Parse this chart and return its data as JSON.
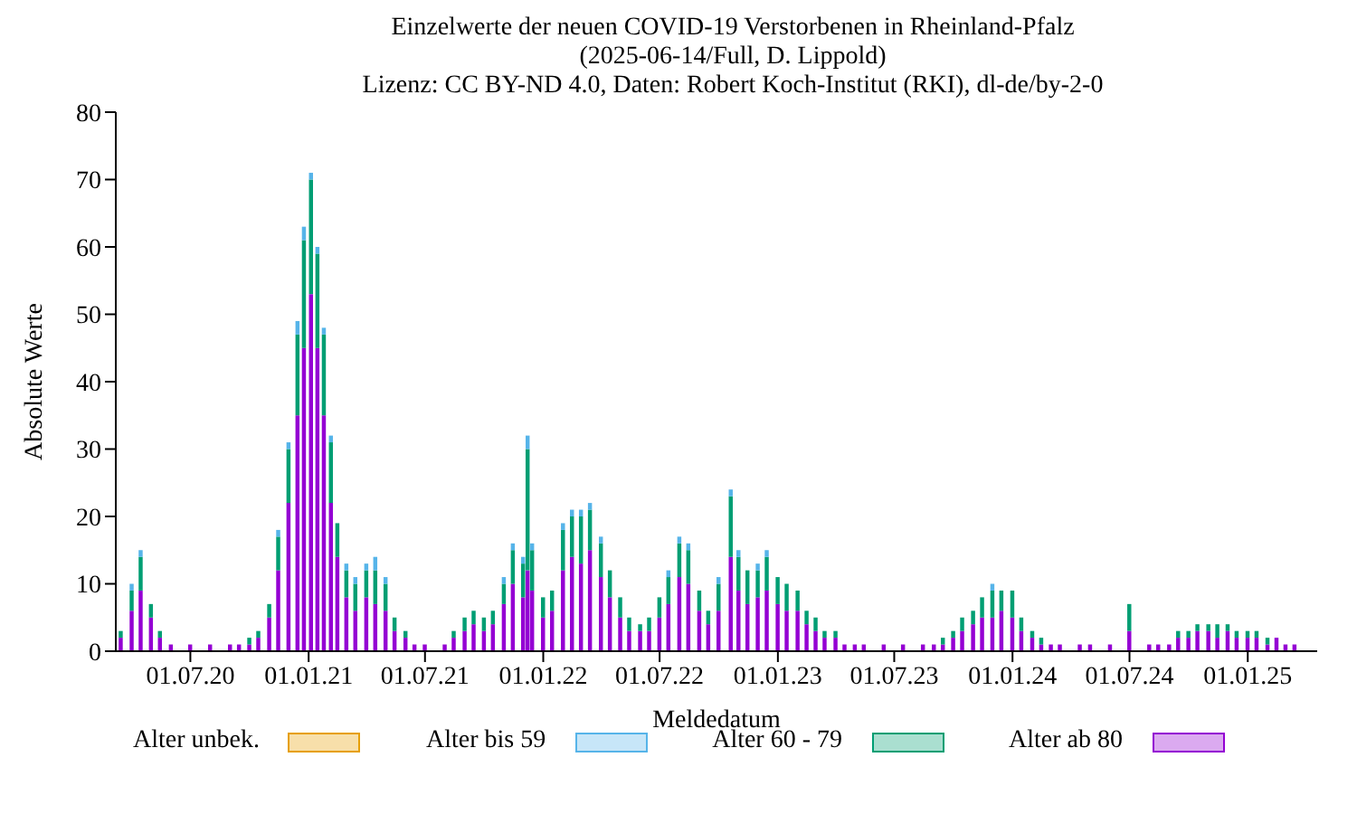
{
  "chart_data": {
    "type": "bar",
    "stacked": true,
    "title": "Einzelwerte der neuen COVID-19 Verstorbenen in Rheinland-Pfalz",
    "subtitle": "(2025-06-14/Full, D. Lippold)",
    "annotations": [
      "Lizenz: CC BY-ND 4.0, Daten: Robert Koch-Institut (RKI), dl-de/by-2-0"
    ],
    "xlabel": "Meldedatum",
    "ylabel": "Absolute Werte",
    "x": [
      "2020-03-15",
      "2020-04-01",
      "2020-04-15",
      "2020-05-01",
      "2020-05-15",
      "2020-06-01",
      "2020-06-15",
      "2020-07-01",
      "2020-07-15",
      "2020-08-01",
      "2020-08-15",
      "2020-09-01",
      "2020-09-15",
      "2020-10-01",
      "2020-10-15",
      "2020-11-01",
      "2020-11-15",
      "2020-12-01",
      "2020-12-15",
      "2020-12-25",
      "2021-01-05",
      "2021-01-15",
      "2021-01-25",
      "2021-02-05",
      "2021-02-15",
      "2021-03-01",
      "2021-03-15",
      "2021-04-01",
      "2021-04-15",
      "2021-05-01",
      "2021-05-15",
      "2021-06-01",
      "2021-06-15",
      "2021-07-01",
      "2021-07-15",
      "2021-08-01",
      "2021-08-15",
      "2021-09-01",
      "2021-09-15",
      "2021-10-01",
      "2021-10-15",
      "2021-11-01",
      "2021-11-15",
      "2021-12-01",
      "2021-12-08",
      "2021-12-15",
      "2022-01-01",
      "2022-01-15",
      "2022-02-01",
      "2022-02-15",
      "2022-03-01",
      "2022-03-15",
      "2022-04-01",
      "2022-04-15",
      "2022-05-01",
      "2022-05-15",
      "2022-06-01",
      "2022-06-15",
      "2022-07-01",
      "2022-07-15",
      "2022-08-01",
      "2022-08-15",
      "2022-09-01",
      "2022-09-15",
      "2022-10-01",
      "2022-10-20",
      "2022-11-01",
      "2022-11-15",
      "2022-12-01",
      "2022-12-15",
      "2023-01-01",
      "2023-01-15",
      "2023-02-01",
      "2023-02-15",
      "2023-03-01",
      "2023-03-15",
      "2023-04-01",
      "2023-04-15",
      "2023-05-01",
      "2023-05-15",
      "2023-06-01",
      "2023-06-15",
      "2023-07-01",
      "2023-07-15",
      "2023-08-01",
      "2023-08-15",
      "2023-09-01",
      "2023-09-15",
      "2023-10-01",
      "2023-10-15",
      "2023-11-01",
      "2023-11-15",
      "2023-12-01",
      "2023-12-15",
      "2024-01-01",
      "2024-01-15",
      "2024-02-01",
      "2024-02-15",
      "2024-03-01",
      "2024-03-15",
      "2024-04-01",
      "2024-04-15",
      "2024-05-01",
      "2024-05-15",
      "2024-06-01",
      "2024-06-15",
      "2024-07-01",
      "2024-07-15",
      "2024-08-01",
      "2024-08-15",
      "2024-09-01",
      "2024-09-15",
      "2024-10-01",
      "2024-10-15",
      "2024-11-01",
      "2024-11-15",
      "2024-12-01",
      "2024-12-15",
      "2025-01-01",
      "2025-01-15",
      "2025-02-01",
      "2025-02-15",
      "2025-03-01",
      "2025-03-15",
      "2025-04-01"
    ],
    "series": [
      {
        "name": "Alter ab 80",
        "color": "#9400d3",
        "values": [
          2,
          6,
          9,
          5,
          2,
          1,
          0,
          1,
          0,
          1,
          0,
          1,
          1,
          1,
          2,
          5,
          12,
          22,
          35,
          45,
          53,
          45,
          35,
          22,
          14,
          8,
          6,
          8,
          7,
          6,
          3,
          2,
          1,
          1,
          0,
          1,
          2,
          3,
          4,
          3,
          4,
          7,
          10,
          8,
          12,
          9,
          5,
          6,
          12,
          14,
          13,
          15,
          11,
          8,
          5,
          3,
          3,
          3,
          5,
          7,
          11,
          10,
          6,
          4,
          6,
          14,
          9,
          7,
          8,
          9,
          7,
          6,
          6,
          4,
          3,
          2,
          2,
          1,
          1,
          1,
          0,
          1,
          0,
          1,
          0,
          1,
          1,
          1,
          2,
          3,
          4,
          5,
          5,
          6,
          5,
          3,
          2,
          1,
          1,
          1,
          0,
          1,
          1,
          0,
          1,
          0,
          3,
          0,
          1,
          1,
          1,
          2,
          2,
          3,
          3,
          2,
          3,
          2,
          2,
          2,
          1,
          2,
          1,
          1,
          0
        ]
      },
      {
        "name": "Alter 60 - 79",
        "color": "#009e73",
        "values": [
          1,
          3,
          5,
          2,
          1,
          0,
          0,
          0,
          0,
          0,
          0,
          0,
          0,
          1,
          1,
          2,
          5,
          8,
          12,
          16,
          17,
          14,
          12,
          9,
          5,
          4,
          4,
          4,
          5,
          4,
          2,
          1,
          0,
          0,
          0,
          0,
          1,
          2,
          2,
          2,
          2,
          3,
          5,
          5,
          18,
          6,
          3,
          3,
          6,
          6,
          7,
          6,
          5,
          4,
          3,
          2,
          1,
          2,
          3,
          4,
          5,
          5,
          3,
          2,
          4,
          9,
          5,
          5,
          4,
          5,
          4,
          4,
          3,
          2,
          2,
          1,
          1,
          0,
          0,
          0,
          0,
          0,
          0,
          0,
          0,
          0,
          0,
          1,
          1,
          2,
          2,
          3,
          4,
          3,
          4,
          2,
          1,
          1,
          0,
          0,
          0,
          0,
          0,
          0,
          0,
          0,
          4,
          0,
          0,
          0,
          0,
          1,
          1,
          1,
          1,
          2,
          1,
          1,
          1,
          1,
          1,
          0,
          0,
          0,
          0
        ]
      },
      {
        "name": "Alter bis 59",
        "color": "#56b4e9",
        "values": [
          0,
          1,
          1,
          0,
          0,
          0,
          0,
          0,
          0,
          0,
          0,
          0,
          0,
          0,
          0,
          0,
          1,
          1,
          2,
          2,
          1,
          1,
          1,
          1,
          0,
          1,
          1,
          1,
          2,
          1,
          0,
          0,
          0,
          0,
          0,
          0,
          0,
          0,
          0,
          0,
          0,
          1,
          1,
          1,
          2,
          1,
          0,
          0,
          1,
          1,
          1,
          1,
          1,
          0,
          0,
          0,
          0,
          0,
          0,
          1,
          1,
          1,
          0,
          0,
          1,
          1,
          1,
          0,
          1,
          1,
          0,
          0,
          0,
          0,
          0,
          0,
          0,
          0,
          0,
          0,
          0,
          0,
          0,
          0,
          0,
          0,
          0,
          0,
          0,
          0,
          0,
          0,
          1,
          0,
          0,
          0,
          0,
          0,
          0,
          0,
          0,
          0,
          0,
          0,
          0,
          0,
          0,
          0,
          0,
          0,
          0,
          0,
          0,
          0,
          0,
          0,
          0,
          0,
          0,
          0,
          0,
          0,
          0,
          0,
          0
        ]
      },
      {
        "name": "Alter unbek.",
        "color": "#e69f00",
        "values": [
          0,
          0,
          0,
          0,
          0,
          0,
          0,
          0,
          0,
          0,
          0,
          0,
          0,
          0,
          0,
          0,
          0,
          0,
          0,
          0,
          0,
          0,
          0,
          0,
          0,
          0,
          0,
          0,
          0,
          0,
          0,
          0,
          0,
          0,
          0,
          0,
          0,
          0,
          0,
          0,
          0,
          0,
          0,
          0,
          0,
          0,
          0,
          0,
          0,
          0,
          0,
          0,
          0,
          0,
          0,
          0,
          0,
          0,
          0,
          0,
          0,
          0,
          0,
          0,
          0,
          0,
          0,
          0,
          0,
          0,
          0,
          0,
          0,
          0,
          0,
          0,
          0,
          0,
          0,
          0,
          0,
          0,
          0,
          0,
          0,
          0,
          0,
          0,
          0,
          0,
          0,
          0,
          0,
          0,
          0,
          0,
          0,
          0,
          0,
          0,
          0,
          0,
          0,
          0,
          0,
          0,
          0,
          0,
          0,
          0,
          0,
          0,
          0,
          0,
          0,
          0,
          0,
          0,
          0,
          0,
          0,
          0,
          0,
          0,
          0
        ]
      }
    ],
    "xlim": [
      "2020-03-07",
      "2025-04-19"
    ],
    "xticks": [
      {
        "value": "2020-07-01",
        "label": "01.07.20"
      },
      {
        "value": "2021-01-01",
        "label": "01.01.21"
      },
      {
        "value": "2021-07-01",
        "label": "01.07.21"
      },
      {
        "value": "2022-01-01",
        "label": "01.01.22"
      },
      {
        "value": "2022-07-01",
        "label": "01.07.22"
      },
      {
        "value": "2023-01-01",
        "label": "01.01.23"
      },
      {
        "value": "2023-07-01",
        "label": "01.07.23"
      },
      {
        "value": "2024-01-01",
        "label": "01.01.24"
      },
      {
        "value": "2024-07-01",
        "label": "01.07.24"
      },
      {
        "value": "2025-01-01",
        "label": "01.01.25"
      }
    ],
    "ylim": [
      0,
      80
    ],
    "yticks": [
      0,
      10,
      20,
      30,
      40,
      50,
      60,
      70,
      80
    ],
    "grid": false,
    "legend": "bottom"
  }
}
